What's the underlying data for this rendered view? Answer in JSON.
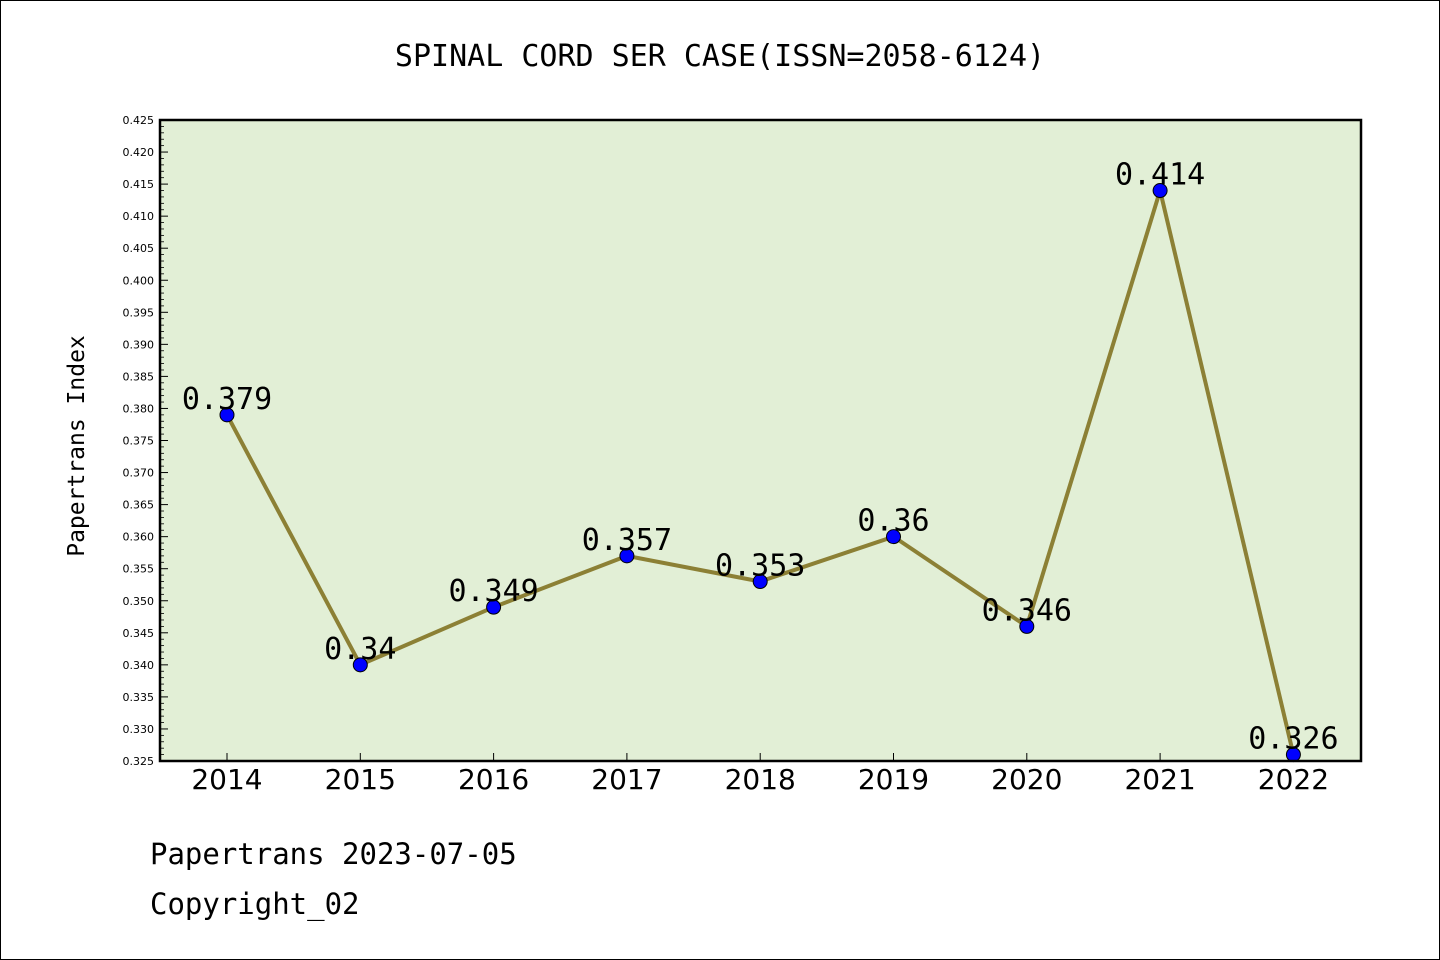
{
  "chart_data": {
    "type": "line",
    "title": "SPINAL CORD SER CASE(ISSN=2058-6124)",
    "ylabel": "Papertrans Index",
    "xlabel": "",
    "categories": [
      "2014",
      "2015",
      "2016",
      "2017",
      "2018",
      "2019",
      "2020",
      "2021",
      "2022"
    ],
    "values": [
      0.379,
      0.34,
      0.349,
      0.357,
      0.353,
      0.36,
      0.346,
      0.414,
      0.326
    ],
    "data_labels": [
      "0.379",
      "0.34",
      "0.349",
      "0.357",
      "0.353",
      "0.36",
      "0.346",
      "0.414",
      "0.326"
    ],
    "ylim": [
      0.325,
      0.425
    ],
    "yticks": [
      "0.325",
      "0.330",
      "0.335",
      "0.340",
      "0.345",
      "0.350",
      "0.355",
      "0.360",
      "0.365",
      "0.370",
      "0.375",
      "0.380",
      "0.385",
      "0.390",
      "0.395",
      "0.400",
      "0.405",
      "0.410",
      "0.415",
      "0.420",
      "0.425"
    ],
    "grid": false,
    "colors": {
      "plot_background": "#e2efd6",
      "line": "#8c8035",
      "marker": "#0000ff"
    }
  },
  "footer": {
    "line1": "Papertrans 2023-07-05",
    "line2": "Copyright_02"
  }
}
